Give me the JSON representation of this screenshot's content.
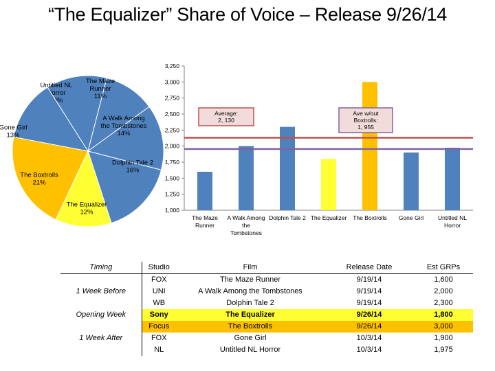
{
  "title": "“The Equalizer” Share of Voice – Release 9/26/14",
  "chart_data": [
    {
      "type": "pie",
      "slices": [
        {
          "label": "Untitled NL Horror",
          "pct_label": "13%",
          "value": 13,
          "color": "#4f81bd"
        },
        {
          "label": "The Maze Runner",
          "pct_label": "11%",
          "value": 11,
          "color": "#4f81bd"
        },
        {
          "label": "A Walk Among the Tombstones",
          "pct_label": "14%",
          "value": 14,
          "color": "#4f81bd"
        },
        {
          "label": "Dolphin Tale 2",
          "pct_label": "16%",
          "value": 16,
          "color": "#4f81bd"
        },
        {
          "label": "The Equalizer",
          "pct_label": "12%",
          "value": 12,
          "color": "#ffff33"
        },
        {
          "label": "The Boxtrolls",
          "pct_label": "21%",
          "value": 21,
          "color": "#ffc000"
        },
        {
          "label": "Gone Girl",
          "pct_label": "13%",
          "value": 13,
          "color": "#4f81bd"
        }
      ]
    },
    {
      "type": "bar",
      "categories": [
        "The Maze Runner",
        "A Walk Among the Tombstones",
        "Dolphin Tale 2",
        "The Equalizer",
        "The Boxtrolls",
        "Gone Girl",
        "Untitled NL Horror"
      ],
      "values": [
        1600,
        2000,
        2300,
        1800,
        3000,
        1900,
        1975
      ],
      "colors": [
        "#4f81bd",
        "#4f81bd",
        "#4f81bd",
        "#ffff33",
        "#ffc000",
        "#4f81bd",
        "#4f81bd"
      ],
      "ylim": [
        1000,
        3250
      ],
      "yticks": [
        "1,000",
        "1,250",
        "1,500",
        "1,750",
        "2,000",
        "2,250",
        "2,500",
        "2,750",
        "3,000",
        "3,250"
      ],
      "ytick_values": [
        1000,
        1250,
        1500,
        1750,
        2000,
        2250,
        2500,
        2750,
        3000,
        3250
      ],
      "reference_lines": [
        {
          "value": 2130,
          "label": "Average:\n2, 130",
          "color": "#c0504d"
        },
        {
          "value": 1955,
          "label": "Ave w/out\nBoxtrolls:\n1, 955",
          "color": "#8064a2"
        }
      ]
    }
  ],
  "table": {
    "headers": [
      "Timing",
      "Studio",
      "Film",
      "Release Date",
      "Est GRPs"
    ],
    "rows": [
      {
        "timing": "",
        "studio": "FOX",
        "film": "The Maze Runner",
        "date": "9/19/14",
        "grps": "1,600"
      },
      {
        "timing": "1 Week Before",
        "studio": "UNI",
        "film": "A Walk Among the Tombstones",
        "date": "9/19/14",
        "grps": "2,000"
      },
      {
        "timing": "",
        "studio": "WB",
        "film": "Dolphin Tale 2",
        "date": "9/19/14",
        "grps": "2,300"
      },
      {
        "timing": "Opening Week",
        "studio": "Sony",
        "film": "The Equalizer",
        "date": "9/26/14",
        "grps": "1,800"
      },
      {
        "timing": "",
        "studio": "Focus",
        "film": "The Boxtrolls",
        "date": "9/26/14",
        "grps": "3,000"
      },
      {
        "timing": "1 Week After",
        "studio": "FOX",
        "film": "Gone Girl",
        "date": "10/3/14",
        "grps": "1,900"
      },
      {
        "timing": "",
        "studio": "NL",
        "film": "Untitled NL Horror",
        "date": "10/3/14",
        "grps": "1,975"
      }
    ]
  }
}
